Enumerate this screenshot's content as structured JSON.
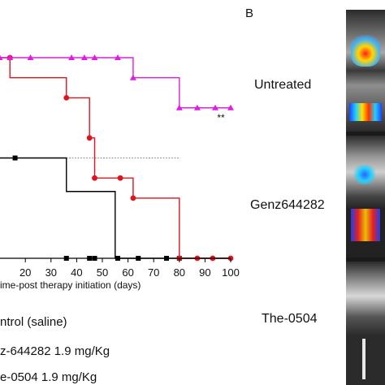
{
  "chart_data": {
    "type": "line",
    "title": "",
    "xlabel": "ime-post therapy initiation (days)",
    "ylabel": "",
    "xlim": [
      0,
      100
    ],
    "ylim": [
      0,
      100
    ],
    "x_ticks": [
      "20",
      "30",
      "40",
      "50",
      "60",
      "70",
      "80",
      "90",
      "100"
    ],
    "significance": "**",
    "reference_line_y": 50,
    "series": [
      {
        "name": "ntrol (saline)",
        "color": "#000000",
        "marker": "square",
        "steps": [
          [
            0,
            50
          ],
          [
            36,
            50
          ],
          [
            36,
            33.3
          ],
          [
            55,
            33.3
          ],
          [
            55,
            0
          ],
          [
            100,
            0
          ]
        ],
        "points": [
          [
            16,
            50
          ],
          [
            36,
            0
          ],
          [
            45,
            0
          ],
          [
            47,
            0
          ],
          [
            56,
            0
          ],
          [
            64,
            0
          ],
          [
            75,
            0
          ],
          [
            80,
            0
          ]
        ]
      },
      {
        "name": "z-644282 1.9 mg/Kg",
        "color": "#e0141e",
        "marker": "circle",
        "steps": [
          [
            0,
            100
          ],
          [
            14,
            100
          ],
          [
            14,
            90
          ],
          [
            36,
            90
          ],
          [
            36,
            80
          ],
          [
            45,
            80
          ],
          [
            45,
            60
          ],
          [
            47,
            60
          ],
          [
            47,
            40
          ],
          [
            62,
            40
          ],
          [
            62,
            30
          ],
          [
            80,
            30
          ],
          [
            80,
            0
          ],
          [
            100,
            0
          ]
        ],
        "points": [
          [
            14,
            100
          ],
          [
            7,
            90
          ],
          [
            36,
            80
          ],
          [
            45,
            60
          ],
          [
            47,
            40
          ],
          [
            57,
            40
          ],
          [
            62,
            30
          ],
          [
            80,
            0
          ],
          [
            87,
            0
          ],
          [
            93,
            0
          ],
          [
            100,
            0
          ]
        ]
      },
      {
        "name": "e-0504 1.9 mg/Kg",
        "color": "#e01ee0",
        "marker": "triangle",
        "steps": [
          [
            0,
            100
          ],
          [
            62,
            100
          ],
          [
            62,
            90
          ],
          [
            80,
            90
          ],
          [
            80,
            75
          ],
          [
            100,
            75
          ]
        ],
        "points": [
          [
            10,
            100
          ],
          [
            14,
            100
          ],
          [
            22,
            100
          ],
          [
            38,
            100
          ],
          [
            43,
            100
          ],
          [
            47,
            100
          ],
          [
            56,
            100
          ],
          [
            62,
            90
          ],
          [
            80,
            75
          ],
          [
            87,
            75
          ],
          [
            94,
            75
          ],
          [
            100,
            75
          ]
        ]
      }
    ]
  },
  "panel_b": {
    "letter": "B",
    "groups": [
      "Untreated",
      "Genz644282",
      "The-0504"
    ]
  }
}
